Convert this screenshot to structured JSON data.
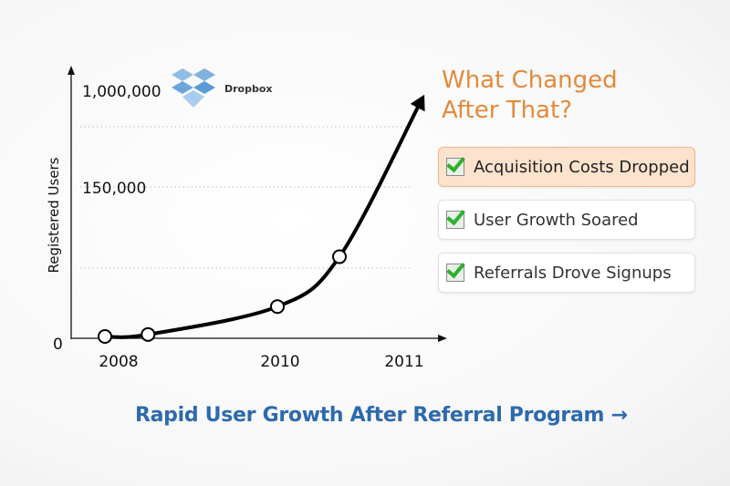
{
  "chart_data": {
    "type": "line",
    "title": "",
    "ylabel": "Registered Users",
    "xlabel": "",
    "x_ticks": [
      {
        "label": "2008",
        "value": 2008
      },
      {
        "label": "2010",
        "value": 2010
      },
      {
        "label": "2011",
        "value": 2011
      }
    ],
    "y_ticks": [
      {
        "label": "0",
        "value": 0
      },
      {
        "label": "150,000",
        "value": 150000
      },
      {
        "label": "1,000,000",
        "value": 1000000
      }
    ],
    "y_scale": "nonlinear",
    "grid": "dotted horizontal",
    "series": [
      {
        "points": [
          {
            "x": 2008,
            "y": 0
          },
          {
            "x": 2008.5,
            "y": 2000
          },
          {
            "x": 2010,
            "y": 30000
          },
          {
            "x": 2010.5,
            "y": 80000
          }
        ],
        "trend_end": {
          "x": 2011.15,
          "y": 890000
        }
      }
    ],
    "line_color": "#000000"
  },
  "logo": {
    "text": "Dropbox",
    "color": "#5b9bd5"
  },
  "side": {
    "title_line1": "What Changed",
    "title_line2": "After That?",
    "title_color": "#e38a3a",
    "items": [
      {
        "label": "Acquisition Costs Dropped",
        "highlighted": true,
        "checked": true
      },
      {
        "label": "User Growth Soared",
        "highlighted": false,
        "checked": true
      },
      {
        "label": "Referrals Drove Signups",
        "highlighted": false,
        "checked": true
      }
    ]
  },
  "footer": {
    "text": "Rapid User Growth After Referral Program",
    "arrow": "→",
    "color": "#2d6aad"
  }
}
